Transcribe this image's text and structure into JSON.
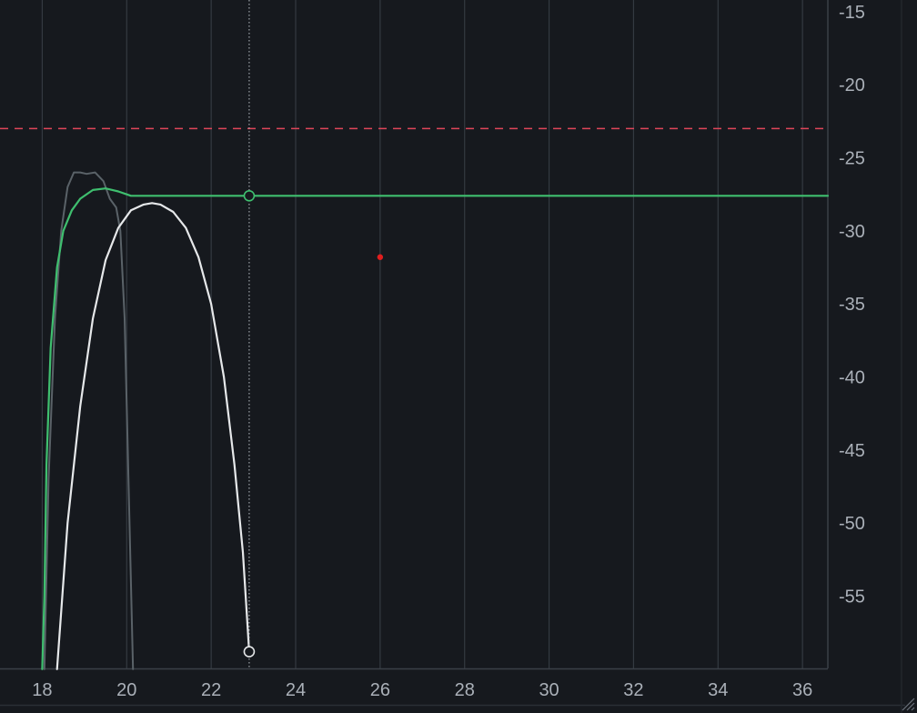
{
  "chart_data": {
    "type": "line",
    "title": "",
    "xlabel": "",
    "ylabel": "",
    "xlim": [
      17.0,
      36.6
    ],
    "ylim": [
      -59.95,
      -14.2
    ],
    "x_ticks": [
      18,
      20,
      22,
      24,
      26,
      28,
      30,
      32,
      34,
      36
    ],
    "y_ticks": [
      -15,
      -20,
      -25,
      -30,
      -35,
      -40,
      -45,
      -50,
      -55
    ],
    "grid": "vertical",
    "threshold_line": {
      "y": -23.0,
      "style": "dashed",
      "color": "#e0455a"
    },
    "cursor": {
      "x": 22.9,
      "style": "dotted"
    },
    "red_dot": {
      "x": 26.0,
      "y": -31.8,
      "color": "#e01e1e"
    },
    "series": [
      {
        "color": "#5a6268",
        "x": [
          18.05,
          18.15,
          18.3,
          18.45,
          18.6,
          18.75,
          18.9,
          19.05,
          19.25,
          19.45,
          19.6,
          19.75,
          19.85,
          19.95,
          20.05,
          20.15
        ],
        "y": [
          -60.0,
          -47.0,
          -36.0,
          -30.0,
          -27.0,
          -26.0,
          -26.0,
          -26.1,
          -26.0,
          -26.6,
          -27.8,
          -28.4,
          -30.0,
          -36.0,
          -48.0,
          -60.0
        ]
      },
      {
        "color": "#3fbf6f",
        "x": [
          18.0,
          18.05,
          18.1,
          18.2,
          18.35,
          18.5,
          18.7,
          18.9,
          19.2,
          19.5,
          19.8,
          20.0,
          20.1,
          21.0,
          22.0,
          22.9,
          24.0,
          28.0,
          32.0,
          36.6
        ],
        "y": [
          -60.0,
          -55.0,
          -46.0,
          -38.0,
          -32.5,
          -30.0,
          -28.6,
          -27.8,
          -27.2,
          -27.1,
          -27.3,
          -27.5,
          -27.6,
          -27.6,
          -27.6,
          -27.6,
          -27.6,
          -27.6,
          -27.6,
          -27.6
        ]
      },
      {
        "color": "#e6e8ea",
        "x": [
          18.35,
          18.6,
          18.9,
          19.2,
          19.5,
          19.8,
          20.1,
          20.4,
          20.6,
          20.8,
          21.1,
          21.4,
          21.7,
          22.0,
          22.3,
          22.55,
          22.75,
          22.9
        ],
        "y": [
          -60.0,
          -50.0,
          -42.0,
          -36.0,
          -32.0,
          -29.8,
          -28.6,
          -28.2,
          -28.1,
          -28.2,
          -28.7,
          -29.8,
          -31.8,
          -35.0,
          -40.0,
          -46.0,
          -52.0,
          -58.8
        ]
      }
    ],
    "markers": [
      {
        "x": 22.9,
        "y": -27.6,
        "color": "#3fbf6f"
      },
      {
        "x": 22.9,
        "y": -58.8,
        "color": "#e6e8ea"
      }
    ]
  }
}
